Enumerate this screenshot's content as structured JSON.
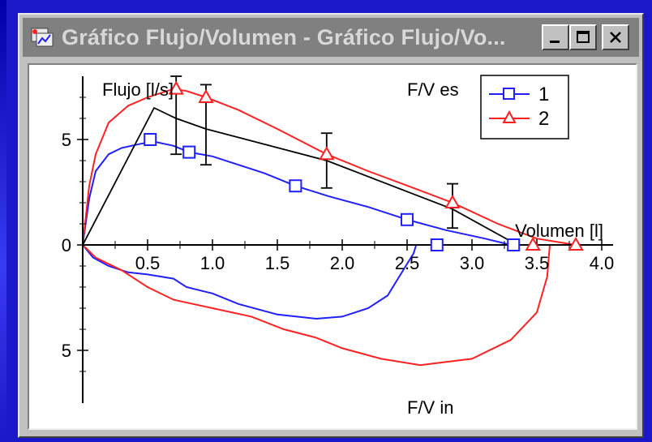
{
  "window": {
    "title": "Gráfico Flujo/Volumen - Gráfico Flujo/Vo...",
    "buttons": [
      "minimize",
      "maximize",
      "close"
    ]
  },
  "colors": {
    "series1": "#2020ff",
    "series2": "#ff2020",
    "predicted": "#000000",
    "background": "#1a18c8",
    "titlebar": "#808080"
  },
  "chart_data": {
    "type": "line",
    "xlabel": "Volumen [l]",
    "ylabel": "Flujo [l/s]",
    "label_top": "F/V es",
    "label_bottom": "F/V in",
    "xlim": [
      0,
      4.0
    ],
    "ylim": [
      -7.5,
      8
    ],
    "x_ticks": [
      "0.5",
      "1.0",
      "1.5",
      "2.0",
      "2.5",
      "3.0",
      "3.5",
      "4.0"
    ],
    "y_ticks": [
      {
        "label": "5",
        "value": 5
      },
      {
        "label": "0",
        "value": 0
      },
      {
        "label": "5",
        "value": -5
      }
    ],
    "legend": {
      "position": "top-right",
      "entries": [
        "1",
        "2"
      ]
    },
    "series": [
      {
        "name": "1",
        "marker": "square",
        "expiratory": [
          [
            0,
            0
          ],
          [
            0.05,
            2.2
          ],
          [
            0.1,
            3.5
          ],
          [
            0.2,
            4.3
          ],
          [
            0.3,
            4.6
          ],
          [
            0.45,
            4.8
          ],
          [
            0.55,
            4.9
          ],
          [
            0.7,
            4.7
          ],
          [
            0.82,
            4.4
          ],
          [
            1.0,
            4.2
          ],
          [
            1.2,
            3.8
          ],
          [
            1.4,
            3.4
          ],
          [
            1.64,
            2.8
          ],
          [
            1.9,
            2.3
          ],
          [
            2.2,
            1.8
          ],
          [
            2.5,
            1.2
          ],
          [
            2.8,
            0.7
          ],
          [
            3.1,
            0.3
          ],
          [
            3.3,
            0
          ]
        ],
        "expiratory_markers": [
          [
            0.52,
            5.0
          ],
          [
            0.82,
            4.4
          ],
          [
            1.64,
            2.8
          ],
          [
            2.5,
            1.2
          ],
          [
            2.73,
            0
          ],
          [
            3.32,
            0
          ]
        ],
        "inspiratory": [
          [
            0,
            0
          ],
          [
            0.08,
            -0.6
          ],
          [
            0.2,
            -1.0
          ],
          [
            0.35,
            -1.3
          ],
          [
            0.5,
            -1.4
          ],
          [
            0.7,
            -1.6
          ],
          [
            0.8,
            -2.0
          ],
          [
            1.0,
            -2.3
          ],
          [
            1.2,
            -2.8
          ],
          [
            1.5,
            -3.3
          ],
          [
            1.8,
            -3.5
          ],
          [
            2.0,
            -3.4
          ],
          [
            2.2,
            -3.0
          ],
          [
            2.35,
            -2.4
          ],
          [
            2.45,
            -1.4
          ],
          [
            2.55,
            -0.4
          ],
          [
            2.57,
            0
          ]
        ]
      },
      {
        "name": "2",
        "marker": "triangle",
        "expiratory": [
          [
            0,
            0
          ],
          [
            0.05,
            2.8
          ],
          [
            0.1,
            4.3
          ],
          [
            0.2,
            5.8
          ],
          [
            0.35,
            6.6
          ],
          [
            0.5,
            7.0
          ],
          [
            0.7,
            7.4
          ],
          [
            0.8,
            7.3
          ],
          [
            0.95,
            7.0
          ],
          [
            1.2,
            6.4
          ],
          [
            1.5,
            5.5
          ],
          [
            1.88,
            4.3
          ],
          [
            2.2,
            3.5
          ],
          [
            2.55,
            2.7
          ],
          [
            2.85,
            2.0
          ],
          [
            3.2,
            1.0
          ],
          [
            3.5,
            0.3
          ],
          [
            3.8,
            0
          ]
        ],
        "expiratory_markers": [
          [
            0.72,
            7.4
          ],
          [
            0.95,
            7.0
          ],
          [
            1.88,
            4.3
          ],
          [
            2.85,
            2.0
          ],
          [
            3.47,
            0
          ],
          [
            3.8,
            0
          ]
        ],
        "inspiratory": [
          [
            0,
            0
          ],
          [
            0.1,
            -0.6
          ],
          [
            0.3,
            -1.2
          ],
          [
            0.5,
            -2.0
          ],
          [
            0.7,
            -2.6
          ],
          [
            1.0,
            -3.0
          ],
          [
            1.3,
            -3.4
          ],
          [
            1.55,
            -4.0
          ],
          [
            1.8,
            -4.4
          ],
          [
            2.0,
            -4.9
          ],
          [
            2.3,
            -5.4
          ],
          [
            2.6,
            -5.7
          ],
          [
            3.0,
            -5.4
          ],
          [
            3.3,
            -4.5
          ],
          [
            3.5,
            -3.2
          ],
          [
            3.58,
            -1.5
          ],
          [
            3.6,
            0
          ]
        ]
      }
    ],
    "predicted": {
      "line": [
        [
          0,
          0
        ],
        [
          0.55,
          6.5
        ],
        [
          0.72,
          6.0
        ],
        [
          0.95,
          5.5
        ],
        [
          1.88,
          4.0
        ],
        [
          2.85,
          1.7
        ],
        [
          3.35,
          0
        ]
      ],
      "error_bars": [
        {
          "x": 0.72,
          "y": 6.0,
          "low": 4.3,
          "high": 8.0
        },
        {
          "x": 0.95,
          "y": 5.5,
          "low": 3.8,
          "high": 7.6
        },
        {
          "x": 1.88,
          "y": 4.0,
          "low": 2.7,
          "high": 5.3
        },
        {
          "x": 2.85,
          "y": 1.7,
          "low": 0.8,
          "high": 2.9
        }
      ]
    }
  }
}
